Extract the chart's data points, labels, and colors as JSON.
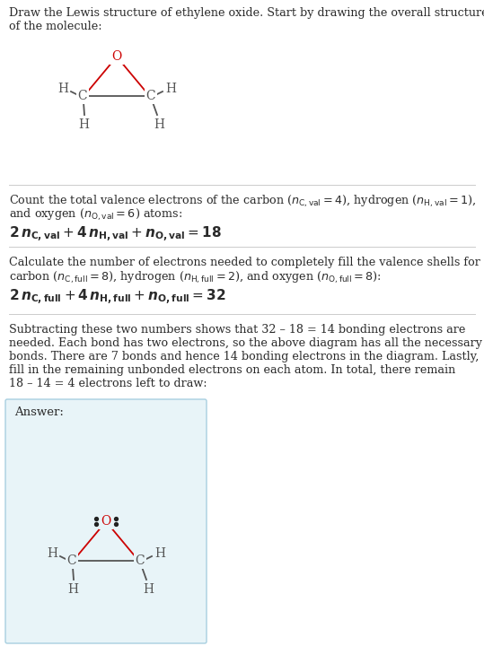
{
  "bg_color": "#ffffff",
  "answer_box_color": "#e8f4f8",
  "answer_box_border": "#a8cfe0",
  "text_color": "#2a2a2a",
  "atom_C_color": "#555555",
  "atom_O_color": "#cc0000",
  "atom_H_color": "#555555",
  "bond_color": "#555555",
  "bond_color_O": "#cc0000",
  "lone_pair_color": "#222222",
  "title_line1": "Draw the Lewis structure of ethylene oxide. Start by drawing the overall structure",
  "title_line2": "of the molecule:",
  "sec1_line1": "Count the total valence electrons of the carbon (",
  "sec1_line2": "and oxygen (",
  "sec1_eq": "2 n",
  "sec2_line1": "Calculate the number of electrons needed to completely fill the valence shells for",
  "sec2_line2": "carbon (",
  "sec3_lines": [
    "Subtracting these two numbers shows that 32 – 18 = 14 bonding electrons are",
    "needed. Each bond has two electrons, so the above diagram has all the necessary",
    "bonds. There are 7 bonds and hence 14 bonding electrons in the diagram. Lastly,",
    "fill in the remaining unbonded electrons on each atom. In total, there remain",
    "18 – 14 = 4 electrons left to draw:"
  ],
  "answer_label": "Answer:"
}
